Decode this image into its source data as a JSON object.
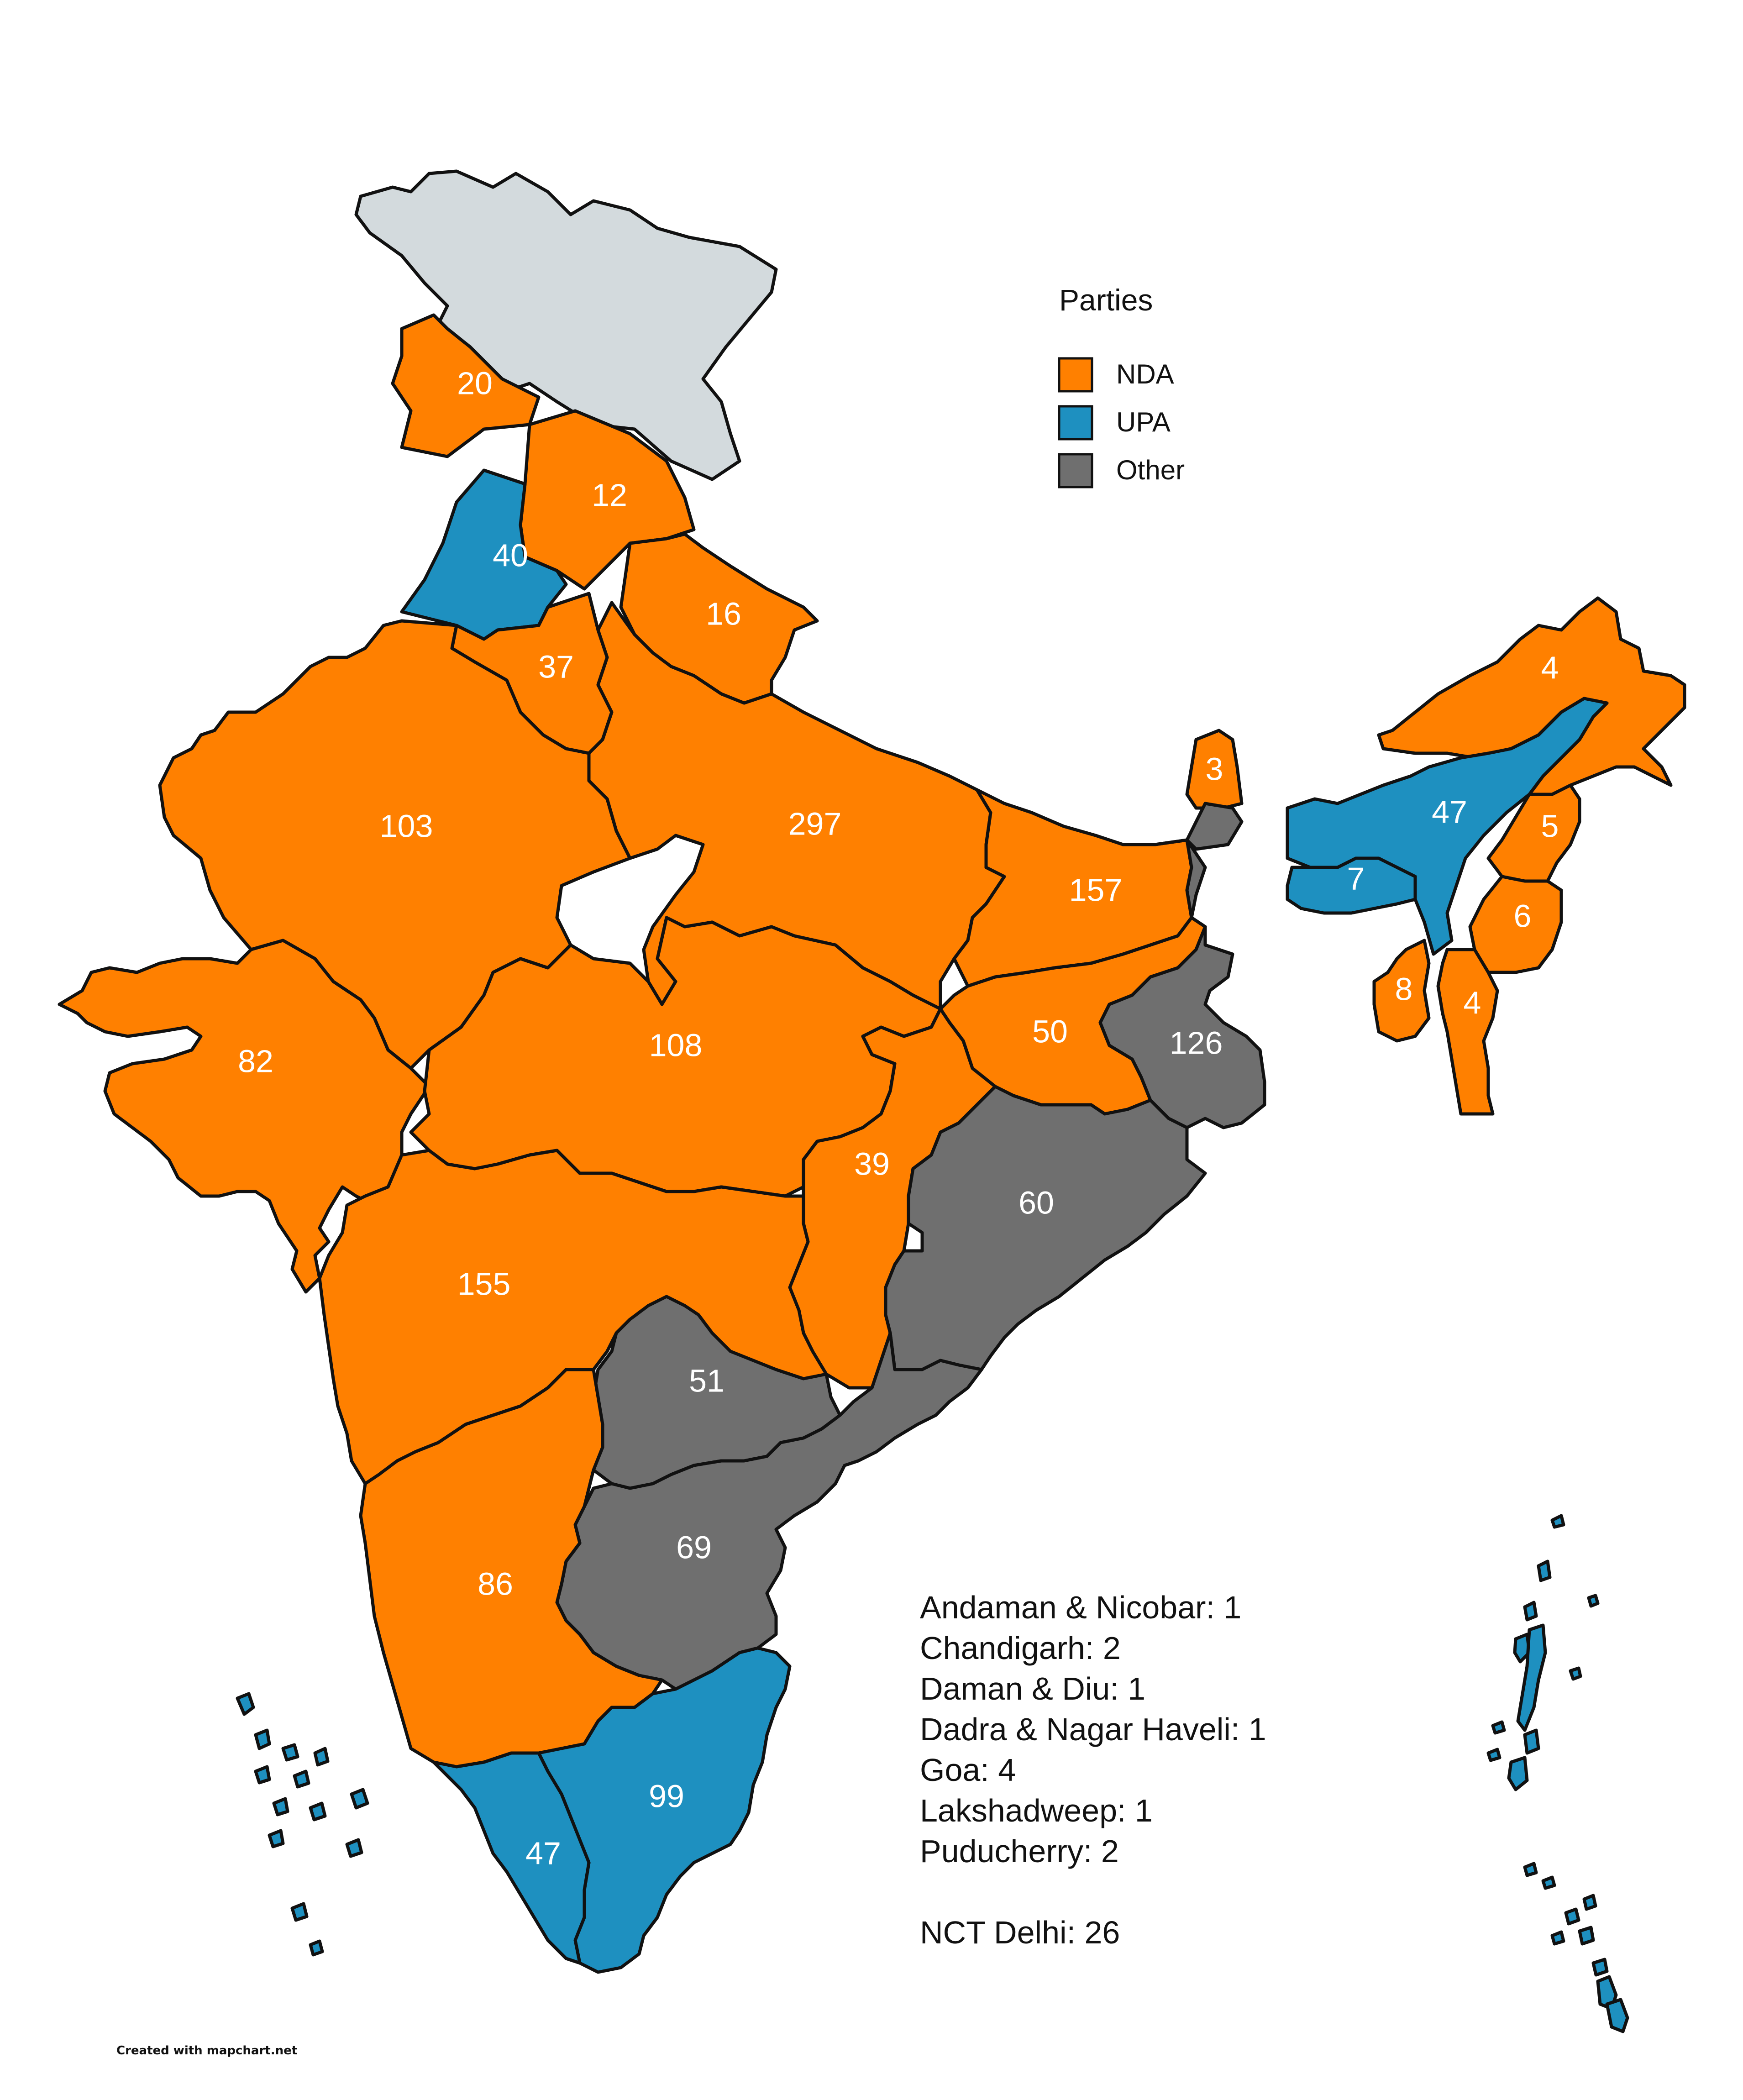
{
  "colors": {
    "NDA": "#FF8000",
    "UPA": "#1E90C0",
    "Other": "#6F6F6F",
    "none": "#D3DADD"
  },
  "legend": {
    "title": "Parties",
    "items": [
      {
        "key": "NDA",
        "label": "NDA"
      },
      {
        "key": "UPA",
        "label": "UPA"
      },
      {
        "key": "Other",
        "label": "Other"
      }
    ]
  },
  "regions": [
    {
      "id": "ladakh-jk",
      "party": "none",
      "value": ""
    },
    {
      "id": "himachal",
      "party": "NDA",
      "value": "20"
    },
    {
      "id": "uttarakhand-north",
      "party": "NDA",
      "value": "12"
    },
    {
      "id": "punjab",
      "party": "UPA",
      "value": "40"
    },
    {
      "id": "haryana",
      "party": "NDA",
      "value": "37"
    },
    {
      "id": "uttarakhand",
      "party": "NDA",
      "value": "16"
    },
    {
      "id": "rajasthan",
      "party": "NDA",
      "value": "103"
    },
    {
      "id": "uttar-pradesh",
      "party": "NDA",
      "value": "297"
    },
    {
      "id": "bihar",
      "party": "NDA",
      "value": "157"
    },
    {
      "id": "sikkim",
      "party": "NDA",
      "value": "3"
    },
    {
      "id": "arunachal",
      "party": "NDA",
      "value": "4"
    },
    {
      "id": "assam",
      "party": "UPA",
      "value": "47"
    },
    {
      "id": "meghalaya",
      "party": "UPA",
      "value": "7"
    },
    {
      "id": "nagaland",
      "party": "NDA",
      "value": "5"
    },
    {
      "id": "manipur",
      "party": "NDA",
      "value": "6"
    },
    {
      "id": "tripura",
      "party": "NDA",
      "value": "8"
    },
    {
      "id": "mizoram",
      "party": "NDA",
      "value": "4"
    },
    {
      "id": "gujarat",
      "party": "NDA",
      "value": "82"
    },
    {
      "id": "madhya-pradesh",
      "party": "NDA",
      "value": "108"
    },
    {
      "id": "jharkhand",
      "party": "NDA",
      "value": "50"
    },
    {
      "id": "west-bengal",
      "party": "Other",
      "value": "126"
    },
    {
      "id": "chhattisgarh",
      "party": "NDA",
      "value": "39"
    },
    {
      "id": "odisha",
      "party": "Other",
      "value": "60"
    },
    {
      "id": "maharashtra",
      "party": "NDA",
      "value": "155"
    },
    {
      "id": "telangana",
      "party": "Other",
      "value": "51"
    },
    {
      "id": "andhra-pradesh",
      "party": "Other",
      "value": "69"
    },
    {
      "id": "karnataka",
      "party": "NDA",
      "value": "86"
    },
    {
      "id": "tamil-nadu",
      "party": "UPA",
      "value": "99"
    },
    {
      "id": "kerala",
      "party": "UPA",
      "value": "47"
    },
    {
      "id": "lakshadweep",
      "party": "UPA",
      "value": ""
    },
    {
      "id": "andaman-nicobar",
      "party": "UPA",
      "value": ""
    }
  ],
  "info_lines": [
    "Andaman & Nicobar: 1",
    "Chandigarh: 2",
    "Daman & Diu: 1",
    "Dadra & Nagar Haveli: 1",
    "Goa: 4",
    "Lakshadweep: 1",
    "Puducherry: 2",
    "",
    "NCT Delhi: 26"
  ],
  "credit": "Created with mapchart.net"
}
